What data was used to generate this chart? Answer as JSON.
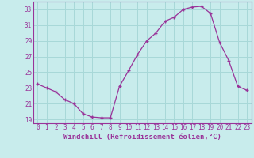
{
  "x": [
    0,
    1,
    2,
    3,
    4,
    5,
    6,
    7,
    8,
    9,
    10,
    11,
    12,
    13,
    14,
    15,
    16,
    17,
    18,
    19,
    20,
    21,
    22,
    23
  ],
  "y": [
    23.5,
    23.0,
    22.5,
    21.5,
    21.0,
    19.7,
    19.3,
    19.2,
    19.2,
    23.2,
    25.2,
    27.3,
    29.0,
    30.0,
    31.5,
    32.0,
    33.0,
    33.3,
    33.4,
    32.5,
    28.8,
    26.5,
    23.2,
    22.7
  ],
  "line_color": "#993399",
  "marker": "+",
  "bg_color": "#c8ecec",
  "grid_color": "#a8d8d8",
  "tick_color": "#993399",
  "xlabel": "Windchill (Refroidissement éolien,°C)",
  "ylim": [
    18.5,
    34.0
  ],
  "yticks": [
    19,
    21,
    23,
    25,
    27,
    29,
    31,
    33
  ],
  "xticks": [
    0,
    1,
    2,
    3,
    4,
    5,
    6,
    7,
    8,
    9,
    10,
    11,
    12,
    13,
    14,
    15,
    16,
    17,
    18,
    19,
    20,
    21,
    22,
    23
  ],
  "tick_fontsize": 5.5,
  "xlabel_fontsize": 6.5,
  "xlabel_fontweight": "bold"
}
